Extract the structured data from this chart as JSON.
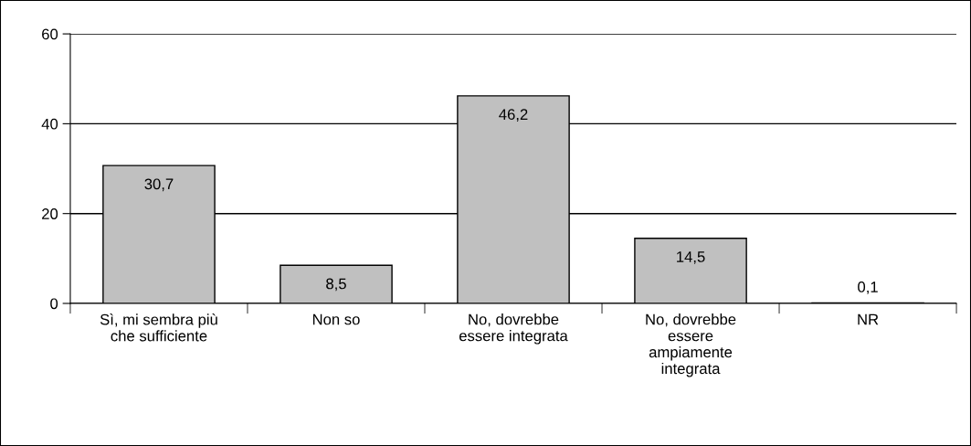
{
  "chart_data": {
    "type": "bar",
    "categories": [
      "Sì, mi sembra più\nche sufficiente",
      "Non so",
      "No, dovrebbe\nessere integrata",
      "No, dovrebbe\nessere\nampiamente\nintegrata",
      "NR"
    ],
    "values": [
      30.7,
      8.5,
      46.2,
      14.5,
      0.1
    ],
    "color": "#c0c0c0",
    "ylim": [
      0,
      60
    ],
    "yticks": [
      0,
      20,
      40,
      60
    ],
    "grid": "y",
    "data_labels": true,
    "value_labels": [
      "30,7",
      "8,5",
      "46,2",
      "14,5",
      "0,1"
    ]
  }
}
